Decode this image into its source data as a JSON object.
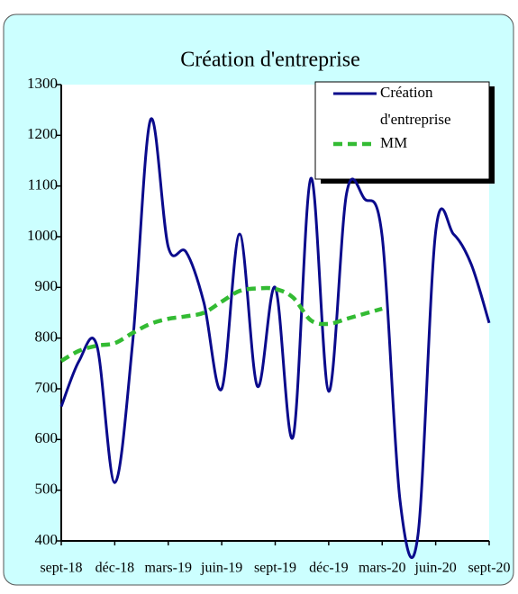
{
  "chart_data": {
    "type": "line",
    "title": "Création d'entreprise",
    "categories": [
      "sept-18",
      null,
      null,
      "déc-18",
      null,
      null,
      "mars-19",
      null,
      null,
      "juin-19",
      null,
      null,
      "sept-19",
      null,
      null,
      "déc-19",
      null,
      null,
      "mars-20",
      null,
      null,
      "juin-20",
      null,
      null,
      "sept-20"
    ],
    "series": [
      {
        "name": "Création d'entreprise",
        "color": "#0a0a8c",
        "dash": false,
        "values": [
          665,
          755,
          785,
          515,
          790,
          1230,
          980,
          970,
          870,
          700,
          1005,
          705,
          900,
          605,
          1115,
          695,
          1085,
          1075,
          1000,
          480,
          410,
          1010,
          1005,
          945,
          830
        ]
      },
      {
        "name": "MM",
        "color": "#33bb33",
        "dash": true,
        "values": [
          755,
          775,
          785,
          790,
          810,
          828,
          838,
          843,
          850,
          872,
          893,
          898,
          897,
          880,
          835,
          828,
          838,
          848,
          858,
          null,
          null,
          null,
          null,
          null,
          null
        ]
      }
    ],
    "ylim": [
      400,
      1300
    ],
    "yticks": [
      400,
      500,
      600,
      700,
      800,
      900,
      1000,
      1100,
      1200,
      1300
    ],
    "grid": false,
    "legend": "top-right"
  }
}
